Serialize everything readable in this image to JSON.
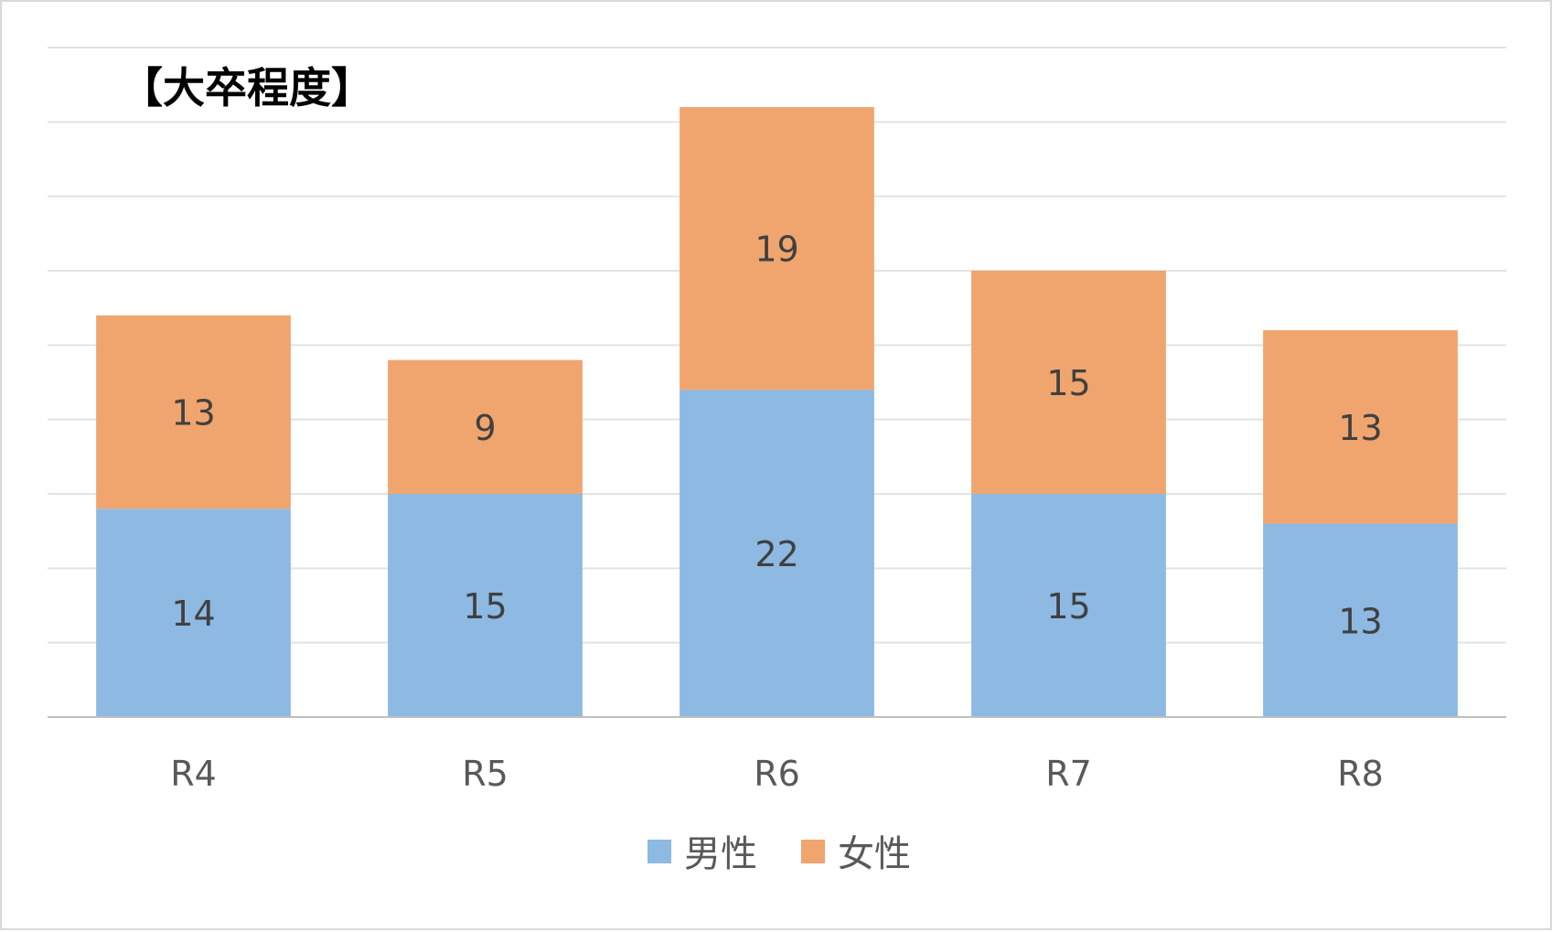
{
  "chart_data": {
    "type": "bar",
    "stacked": true,
    "title": "【大卒程度】",
    "categories": [
      "R4",
      "R5",
      "R6",
      "R7",
      "R8"
    ],
    "series": [
      {
        "name": "男性",
        "values": [
          14,
          15,
          22,
          15,
          13
        ],
        "color": "#8db9e2"
      },
      {
        "name": "女性",
        "values": [
          13,
          9,
          19,
          15,
          13
        ],
        "color": "#f0a56f"
      }
    ],
    "xlabel": "",
    "ylabel": "",
    "ylim": [
      0,
      45
    ],
    "ytick_step": 5,
    "y_tick_labels_visible": false,
    "grid": true,
    "data_labels": true,
    "legend_position": "bottom"
  }
}
